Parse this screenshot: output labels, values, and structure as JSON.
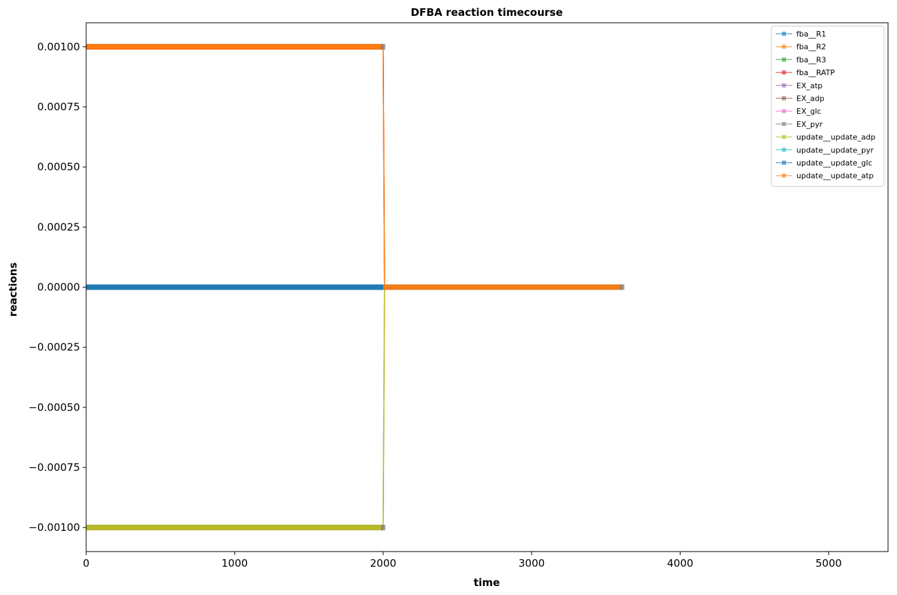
{
  "chart_data": {
    "type": "line",
    "title": "DFBA reaction timecourse",
    "xlabel": "time",
    "ylabel": "reactions",
    "xlim": [
      0,
      5400
    ],
    "ylim": [
      -0.0011,
      0.0011
    ],
    "xticks": [
      0,
      1000,
      2000,
      3000,
      4000,
      5000
    ],
    "xtick_labels": [
      "0",
      "1000",
      "2000",
      "3000",
      "4000",
      "5000"
    ],
    "yticks": [
      0.001,
      0.00075,
      0.0005,
      0.00025,
      0,
      -0.00025,
      -0.0005,
      -0.00075,
      -0.001
    ],
    "ytick_labels": [
      "0.00100",
      "0.00075",
      "0.00050",
      "0.00025",
      "0.00000",
      "−0.00025",
      "−0.00050",
      "−0.00075",
      "−0.00100"
    ],
    "grid": false,
    "legend_position": "top-right",
    "marker": "square",
    "x_range": [
      0,
      3610
    ],
    "switch_time": 2000,
    "series": [
      {
        "name": "fba__R1",
        "color": "#1f77b4",
        "before": 0,
        "after": 0
      },
      {
        "name": "fba__R2",
        "color": "#ff7f0e",
        "before": 0.001,
        "after": 0
      },
      {
        "name": "fba__R3",
        "color": "#2ca02c",
        "before": 0,
        "after": 0
      },
      {
        "name": "fba__RATP",
        "color": "#d62728",
        "before": 0.001,
        "after": 0
      },
      {
        "name": "EX_atp",
        "color": "#9467bd",
        "before": 0,
        "after": 0
      },
      {
        "name": "EX_adp",
        "color": "#8c564b",
        "before": 0,
        "after": 0
      },
      {
        "name": "EX_glc",
        "color": "#e377c2",
        "before": 0,
        "after": 0
      },
      {
        "name": "EX_pyr",
        "color": "#7f7f7f",
        "before": -0.001,
        "after": 0
      },
      {
        "name": "update__update_adp",
        "color": "#bcbd22",
        "before": -0.001,
        "after": 0
      },
      {
        "name": "update__update_pyr",
        "color": "#17becf",
        "before": 0,
        "after": 0
      },
      {
        "name": "update__update_glc",
        "color": "#1f77b4",
        "before": 0,
        "after": 0
      },
      {
        "name": "update__update_atp",
        "color": "#ff7f0e",
        "before": 0.001,
        "after": 0
      }
    ]
  }
}
